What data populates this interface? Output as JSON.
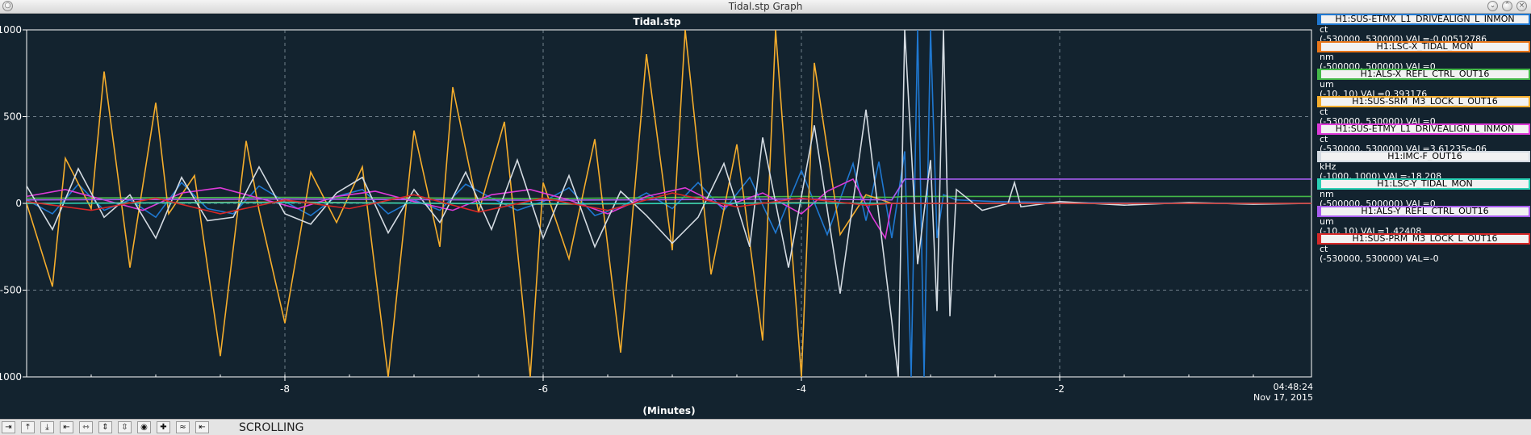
{
  "window": {
    "title": "Tidal.stp Graph"
  },
  "toolbar": {
    "buttons": [
      {
        "name": "scroll-right-icon",
        "glyph": "⇥"
      },
      {
        "name": "scroll-up-icon",
        "glyph": "⤒"
      },
      {
        "name": "scroll-down-icon",
        "glyph": "⤓"
      },
      {
        "name": "expand-horizontal-icon",
        "glyph": "⇤"
      },
      {
        "name": "compress-horizontal-icon",
        "glyph": "⇿"
      },
      {
        "name": "expand-vertical-icon",
        "glyph": "⇕"
      },
      {
        "name": "compress-vertical-icon",
        "glyph": "⇳"
      },
      {
        "name": "record-icon",
        "glyph": "◉"
      },
      {
        "name": "add-icon",
        "glyph": "✚"
      },
      {
        "name": "autoscale-icon",
        "glyph": "≈"
      },
      {
        "name": "back-icon",
        "glyph": "⇤"
      }
    ],
    "mode": "SCROLLING"
  },
  "chart_data": {
    "type": "line",
    "title": "Tidal.stp",
    "xlabel": "(Minutes)",
    "ylabel": "",
    "xlim": [
      -10,
      -0.05
    ],
    "ylim": [
      -1000,
      1000
    ],
    "x_ticks": [
      -8,
      -6,
      -4,
      -2
    ],
    "x_tick_labels": [
      "-8",
      "-6",
      "-4",
      "-2"
    ],
    "y_ticks": [
      1000,
      500,
      0,
      -500,
      -1000
    ],
    "y_tick_labels": [
      "1000",
      "500",
      "0",
      "-500",
      "-1000"
    ],
    "grid": true,
    "time_label": {
      "time": "04:48:24",
      "date": "Nov 17, 2015"
    },
    "series": [
      {
        "name": "H1:SUS-ETMX_L1_DRIVEALIGN_L_INMON",
        "color": "#1f78d1",
        "unit": "ct",
        "range": "(-530000, 530000) VAL=-0.00512786",
        "legend_top": 0,
        "x": [
          -10,
          -9.8,
          -9.6,
          -9.4,
          -9.2,
          -9.0,
          -8.8,
          -8.6,
          -8.4,
          -8.2,
          -8.0,
          -7.8,
          -7.6,
          -7.4,
          -7.2,
          -7.0,
          -6.8,
          -6.6,
          -6.4,
          -6.2,
          -6.0,
          -5.8,
          -5.6,
          -5.4,
          -5.2,
          -5.0,
          -4.8,
          -4.6,
          -4.4,
          -4.2,
          -4.0,
          -3.8,
          -3.6,
          -3.5,
          -3.4,
          -3.3,
          -3.2,
          -3.15,
          -3.1,
          -3.05,
          -3.0,
          -2.95,
          -2.9,
          -2.8,
          -2.5,
          -2.0,
          -1.5,
          -1.0,
          -0.5,
          -0.05
        ],
        "y": [
          20,
          -60,
          110,
          -40,
          20,
          -80,
          120,
          -30,
          -60,
          100,
          10,
          -70,
          40,
          80,
          -60,
          20,
          -40,
          110,
          30,
          -40,
          10,
          90,
          -70,
          -20,
          60,
          -30,
          120,
          -40,
          150,
          -170,
          190,
          -180,
          230,
          -100,
          240,
          -200,
          300,
          -1000,
          1000,
          -1000,
          1000,
          -200,
          50,
          20,
          10,
          5,
          3,
          2,
          1,
          0
        ]
      },
      {
        "name": "H1:LSC-X_TIDAL_MON",
        "color": "#e8761a",
        "unit": "nm",
        "range": "(-500000, 500000) VAL=0",
        "legend_top": 1,
        "x": [
          -10,
          -8,
          -6,
          -4,
          -3.3,
          -3.25,
          -0.05
        ],
        "y": [
          0,
          8,
          -5,
          4,
          0,
          0,
          0
        ]
      },
      {
        "name": "H1:ALS-X_REFL_CTRL_OUT16",
        "color": "#44b848",
        "unit": "um",
        "range": "(-10, 10) VAL=0.393176",
        "legend_top": 2,
        "x": [
          -10,
          -8,
          -6,
          -4,
          -3.3,
          -3.2,
          -0.05
        ],
        "y": [
          30,
          35,
          28,
          40,
          35,
          40,
          40
        ]
      },
      {
        "name": "H1:SUS-SRM_M3_LOCK_L_OUT16",
        "color": "#f5ad2c",
        "unit": "ct",
        "range": "(-530000, 530000) VAL=0",
        "legend_top": 3,
        "x": [
          -10,
          -9.8,
          -9.7,
          -9.5,
          -9.4,
          -9.2,
          -9.0,
          -8.9,
          -8.7,
          -8.5,
          -8.3,
          -8.2,
          -8.0,
          -7.8,
          -7.6,
          -7.4,
          -7.2,
          -7.0,
          -6.8,
          -6.7,
          -6.5,
          -6.3,
          -6.1,
          -6.0,
          -5.8,
          -5.6,
          -5.4,
          -5.2,
          -5.0,
          -4.9,
          -4.7,
          -4.5,
          -4.3,
          -4.2,
          -4.0,
          -3.9,
          -3.7,
          -3.5,
          -3.3,
          -3.25,
          -0.05
        ],
        "y": [
          0,
          -480,
          260,
          -30,
          760,
          -370,
          580,
          -60,
          160,
          -880,
          360,
          -40,
          -690,
          180,
          -110,
          210,
          -1000,
          420,
          -250,
          670,
          -50,
          470,
          -1000,
          120,
          -320,
          370,
          -860,
          860,
          -270,
          1000,
          -410,
          340,
          -790,
          1000,
          -1000,
          810,
          -180,
          50,
          0,
          0,
          0
        ]
      },
      {
        "name": "H1:SUS-ETMY_L1_DRIVEALIGN_L_INMON",
        "color": "#de3ad8",
        "unit": "ct",
        "range": "(-530000, 530000) VAL=3.61235e-06",
        "legend_top": 4,
        "x": [
          -10,
          -9.7,
          -9.4,
          -9.1,
          -8.8,
          -8.5,
          -8.2,
          -7.9,
          -7.6,
          -7.3,
          -7.0,
          -6.7,
          -6.4,
          -6.1,
          -5.8,
          -5.5,
          -5.2,
          -4.9,
          -4.6,
          -4.3,
          -4.0,
          -3.8,
          -3.6,
          -3.45,
          -3.35,
          -3.3,
          -0.05
        ],
        "y": [
          40,
          80,
          20,
          -40,
          60,
          90,
          30,
          -30,
          40,
          70,
          10,
          -40,
          50,
          80,
          20,
          -60,
          40,
          90,
          -20,
          60,
          -60,
          70,
          140,
          -80,
          -200,
          0,
          0
        ]
      },
      {
        "name": "H1:IMC-F_OUT16",
        "color": "#d4dbe2",
        "unit": "kHz",
        "range": "(-1000, 1000) VAL=-18.208",
        "legend_top": 5,
        "x": [
          -10,
          -9.8,
          -9.6,
          -9.4,
          -9.2,
          -9.0,
          -8.8,
          -8.6,
          -8.4,
          -8.2,
          -8.0,
          -7.8,
          -7.6,
          -7.4,
          -7.2,
          -7.0,
          -6.8,
          -6.6,
          -6.4,
          -6.2,
          -6.0,
          -5.8,
          -5.6,
          -5.4,
          -5.2,
          -5.0,
          -4.8,
          -4.6,
          -4.4,
          -4.3,
          -4.1,
          -3.9,
          -3.7,
          -3.5,
          -3.3,
          -3.25,
          -3.2,
          -3.1,
          -3.0,
          -2.95,
          -2.9,
          -2.85,
          -2.8,
          -2.6,
          -2.4,
          -2.35,
          -2.3,
          -2.0,
          -1.5,
          -1.0,
          -0.5,
          -0.05
        ],
        "y": [
          100,
          -150,
          200,
          -80,
          50,
          -200,
          150,
          -100,
          -80,
          210,
          -60,
          -120,
          60,
          150,
          -170,
          80,
          -110,
          180,
          -150,
          250,
          -200,
          160,
          -250,
          70,
          -70,
          -230,
          -80,
          230,
          -250,
          380,
          -370,
          450,
          -520,
          540,
          -680,
          -1000,
          1000,
          -350,
          250,
          -620,
          1000,
          -650,
          80,
          -40,
          0,
          120,
          -20,
          10,
          -10,
          5,
          -5,
          0
        ]
      },
      {
        "name": "H1:LSC-Y_TIDAL_MON",
        "color": "#2ad1b5",
        "unit": "nm",
        "range": "(-500000, 500000) VAL=0",
        "legend_top": 6,
        "x": [
          -10,
          -8,
          -6,
          -4,
          -3.3,
          -0.05
        ],
        "y": [
          0,
          5,
          -3,
          2,
          0,
          0
        ]
      },
      {
        "name": "H1:ALS-Y_REFL_CTRL_OUT16",
        "color": "#a85cf0",
        "unit": "um",
        "range": "(-10, 10) VAL=1.42408",
        "legend_top": 7,
        "x": [
          -10,
          -8,
          -6,
          -4,
          -3.3,
          -3.2,
          -0.05
        ],
        "y": [
          20,
          25,
          18,
          25,
          20,
          140,
          140
        ]
      },
      {
        "name": "H1:SUS-PRM_M3_LOCK_L_OUT16",
        "color": "#d62828",
        "unit": "ct",
        "range": "(-530000, 530000) VAL=-0",
        "legend_top": 8,
        "x": [
          -10,
          -9.5,
          -9.0,
          -8.5,
          -8.0,
          -7.5,
          -7.0,
          -6.5,
          -6.0,
          -5.5,
          -5.0,
          -4.5,
          -4.0,
          -3.5,
          -3.3,
          -0.05
        ],
        "y": [
          10,
          -40,
          30,
          -60,
          20,
          -30,
          50,
          -50,
          30,
          -40,
          60,
          -20,
          30,
          -10,
          0,
          0
        ]
      }
    ]
  }
}
